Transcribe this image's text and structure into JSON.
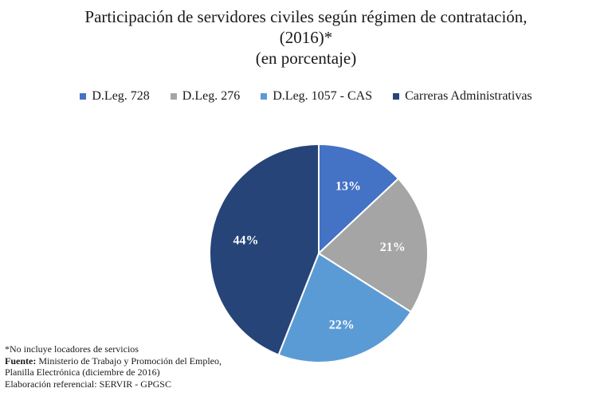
{
  "chart_data": {
    "type": "pie",
    "title": "Participación de servidores civiles según régimen de contratación, (2016)*",
    "subtitle": "(en porcentaje)",
    "slices": [
      {
        "label": "D.Leg. 728",
        "value": 13,
        "value_label": "13%",
        "color": "#4472c4"
      },
      {
        "label": "D.Leg. 276",
        "value": 21,
        "value_label": "21%",
        "color": "#a5a5a5"
      },
      {
        "label": "D.Leg. 1057 - CAS",
        "value": 22,
        "value_label": "22%",
        "color": "#5b9bd5"
      },
      {
        "label": "Carreras Administrativas",
        "value": 44,
        "value_label": "44%",
        "color": "#264478"
      }
    ],
    "legend_position": "top"
  },
  "title_line1": "Participación de servidores civiles según régimen de contratación,",
  "title_line2": "(2016)*",
  "footnote": {
    "note": "*No incluye locadores de servicios",
    "source_label": "Fuente:",
    "source_text": " Ministerio de Trabajo y Promoción del Empleo, Planilla Electrónica (diciembre de 2016)",
    "credit": "Elaboración referencial: SERVIR - GPGSC"
  }
}
